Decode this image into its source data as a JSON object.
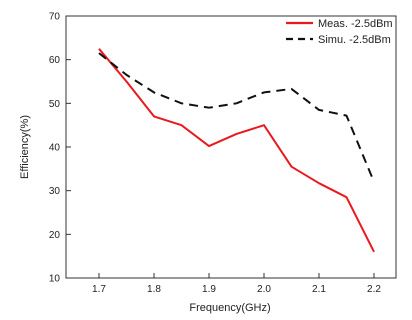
{
  "chart_data": {
    "type": "line",
    "xlabel": "Frequency(GHz)",
    "ylabel": "Efficiency(%)",
    "xlim": [
      1.64,
      2.24
    ],
    "ylim": [
      10,
      70
    ],
    "xticks": [
      1.7,
      1.8,
      1.9,
      2.0,
      2.1,
      2.2
    ],
    "yticks": [
      10,
      20,
      30,
      40,
      50,
      60,
      70
    ],
    "xtick_labels": [
      "1.7",
      "1.8",
      "1.9",
      "2.0",
      "2.1",
      "2.2"
    ],
    "ytick_labels": [
      "10",
      "20",
      "30",
      "40",
      "50",
      "60",
      "70"
    ],
    "grid": false,
    "legend_position": "top-right",
    "series": [
      {
        "name": "Meas. -2.5dBm",
        "color": "#e8191f",
        "dash": "solid",
        "x": [
          1.7,
          1.75,
          1.8,
          1.85,
          1.9,
          1.95,
          2.0,
          2.05,
          2.1,
          2.15,
          2.2
        ],
        "y": [
          62.5,
          55.0,
          47.0,
          45.0,
          40.2,
          43.0,
          45.0,
          35.5,
          31.7,
          28.5,
          16.0
        ]
      },
      {
        "name": "Simu. -2.5dBm",
        "color": "#111111",
        "dash": "dashed",
        "x": [
          1.7,
          1.75,
          1.8,
          1.85,
          1.9,
          1.95,
          2.0,
          2.05,
          2.1,
          2.15,
          2.2
        ],
        "y": [
          61.5,
          56.5,
          52.5,
          50.0,
          49.0,
          50.0,
          52.5,
          53.3,
          48.5,
          47.2,
          32.0
        ]
      }
    ]
  }
}
